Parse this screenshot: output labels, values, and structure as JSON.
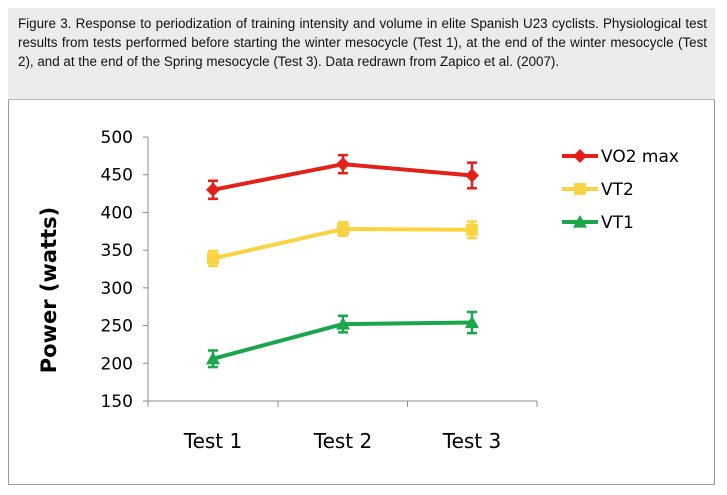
{
  "caption": "Figure 3. Response to periodization of training intensity and volume in elite Spanish U23 cyclists. Physiological test results from tests performed before starting the winter mesocycle (Test 1), at the end of the winter mesocycle (Test 2), and at the end of the Spring mesocycle (Test 3). Data redrawn from Zapico et al. (2007).",
  "chart_data": {
    "type": "line",
    "title": "",
    "xlabel": "",
    "ylabel": "Power (watts)",
    "categories": [
      "Test 1",
      "Test 2",
      "Test 3"
    ],
    "ylim": [
      150,
      500
    ],
    "yticks": [
      150,
      200,
      250,
      300,
      350,
      400,
      450,
      500
    ],
    "grid": false,
    "legend_position": "right",
    "series": [
      {
        "name": "VO2 max",
        "color": "#e32119",
        "marker": "diamond",
        "values": [
          430,
          464,
          449
        ],
        "errors": [
          12,
          12,
          17
        ]
      },
      {
        "name": "VT2",
        "color": "#f9d341",
        "marker": "square",
        "values": [
          339,
          378,
          377
        ],
        "errors": [
          10,
          9,
          11
        ]
      },
      {
        "name": "VT1",
        "color": "#1aa64a",
        "marker": "triangle",
        "values": [
          206,
          252,
          254
        ],
        "errors": [
          11,
          11,
          14
        ]
      }
    ]
  }
}
